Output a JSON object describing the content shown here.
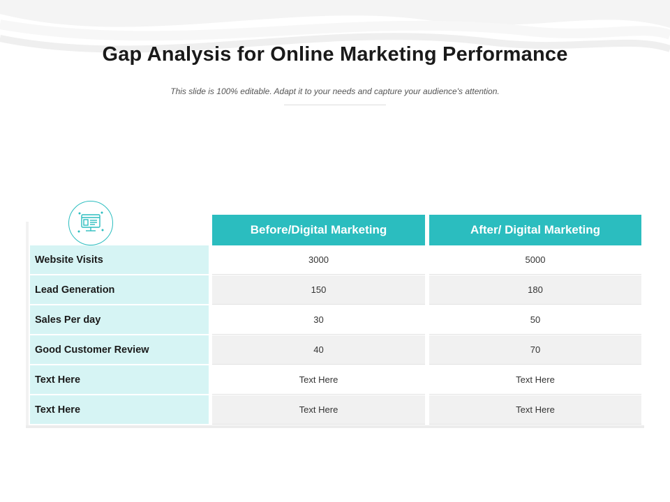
{
  "title": "Gap Analysis for Online Marketing Performance",
  "subtitle": "This slide is 100% editable. Adapt it to your needs and capture your audience's attention.",
  "accent_color": "#2bbdbf",
  "label_bg_color": "#d6f4f4",
  "icon": "website-analytics-icon",
  "table": {
    "headers": [
      "Before/Digital Marketing",
      "After/ Digital Marketing"
    ],
    "rows": [
      {
        "label": "Website Visits",
        "before": "3000",
        "after": "5000"
      },
      {
        "label": "Lead Generation",
        "before": "150",
        "after": "180"
      },
      {
        "label": "Sales Per day",
        "before": "30",
        "after": "50"
      },
      {
        "label": "Good Customer Review",
        "before": "40",
        "after": "70"
      },
      {
        "label": "Text Here",
        "before": "Text Here",
        "after": "Text Here"
      },
      {
        "label": "Text Here",
        "before": "Text Here",
        "after": "Text Here"
      }
    ]
  }
}
